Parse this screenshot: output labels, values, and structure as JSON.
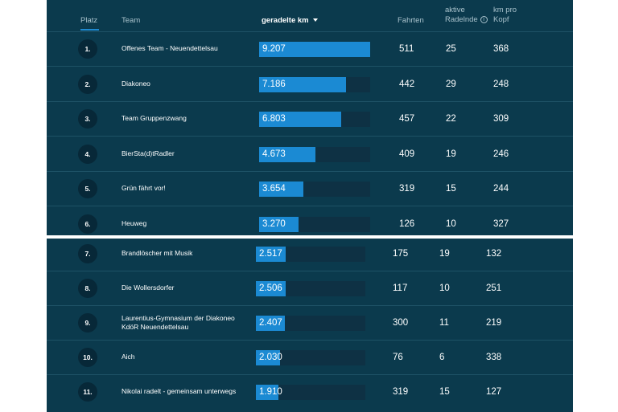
{
  "header": {
    "rank": "Platz",
    "team": "Team",
    "km": "geradelte km",
    "rides": "Fahrten",
    "active": [
      "aktive",
      "Radelnde"
    ],
    "per_head": [
      "km pro",
      "Kopf"
    ],
    "info_icon": "info-icon",
    "sort_icon": "sort-desc-icon"
  },
  "colors": {
    "panel_bg": "#0b3a4d",
    "bar_fill": "#1b8ad3",
    "bar_track": "#0e3144",
    "badge_bg": "#072838",
    "accent": "#1f8ad1"
  },
  "bar_max_km": 9207,
  "top_rows": [
    {
      "rank": "1.",
      "team": [
        "Offenes Team - Neuendettelsau"
      ],
      "km": "9.207",
      "km_value": 9207,
      "rides": "511",
      "active": "25",
      "per_head": "368"
    },
    {
      "rank": "2.",
      "team": [
        "Diakoneo"
      ],
      "km": "7.186",
      "km_value": 7186,
      "rides": "442",
      "active": "29",
      "per_head": "248"
    },
    {
      "rank": "3.",
      "team": [
        "Team Gruppenzwang"
      ],
      "km": "6.803",
      "km_value": 6803,
      "rides": "457",
      "active": "22",
      "per_head": "309"
    },
    {
      "rank": "4.",
      "team": [
        "BierSta(d)tRadler"
      ],
      "km": "4.673",
      "km_value": 4673,
      "rides": "409",
      "active": "19",
      "per_head": "246"
    },
    {
      "rank": "5.",
      "team": [
        "Grün fährt vor!"
      ],
      "km": "3.654",
      "km_value": 3654,
      "rides": "319",
      "active": "15",
      "per_head": "244"
    },
    {
      "rank": "6.",
      "team": [
        "Heuweg"
      ],
      "km": "3.270",
      "km_value": 3270,
      "rides": "126",
      "active": "10",
      "per_head": "327"
    }
  ],
  "bottom_rows": [
    {
      "rank": "7.",
      "team": [
        "Brandlöscher mit Musik"
      ],
      "km": "2.517",
      "km_value": 2517,
      "rides": "175",
      "active": "19",
      "per_head": "132"
    },
    {
      "rank": "8.",
      "team": [
        "Die Wollersdorfer"
      ],
      "km": "2.506",
      "km_value": 2506,
      "rides": "117",
      "active": "10",
      "per_head": "251"
    },
    {
      "rank": "9.",
      "team": [
        "Laurentius-Gymnasium der Diakoneo",
        "KdöR Neuendettelsau"
      ],
      "km": "2.407",
      "km_value": 2407,
      "rides": "300",
      "active": "11",
      "per_head": "219"
    },
    {
      "rank": "10.",
      "team": [
        "Aich"
      ],
      "km": "2.030",
      "km_value": 2030,
      "rides": "76",
      "active": "6",
      "per_head": "338"
    },
    {
      "rank": "11.",
      "team": [
        "Nikolai radelt - gemeinsam unterwegs"
      ],
      "km": "1.910",
      "km_value": 1910,
      "rides": "319",
      "active": "15",
      "per_head": "127"
    }
  ]
}
